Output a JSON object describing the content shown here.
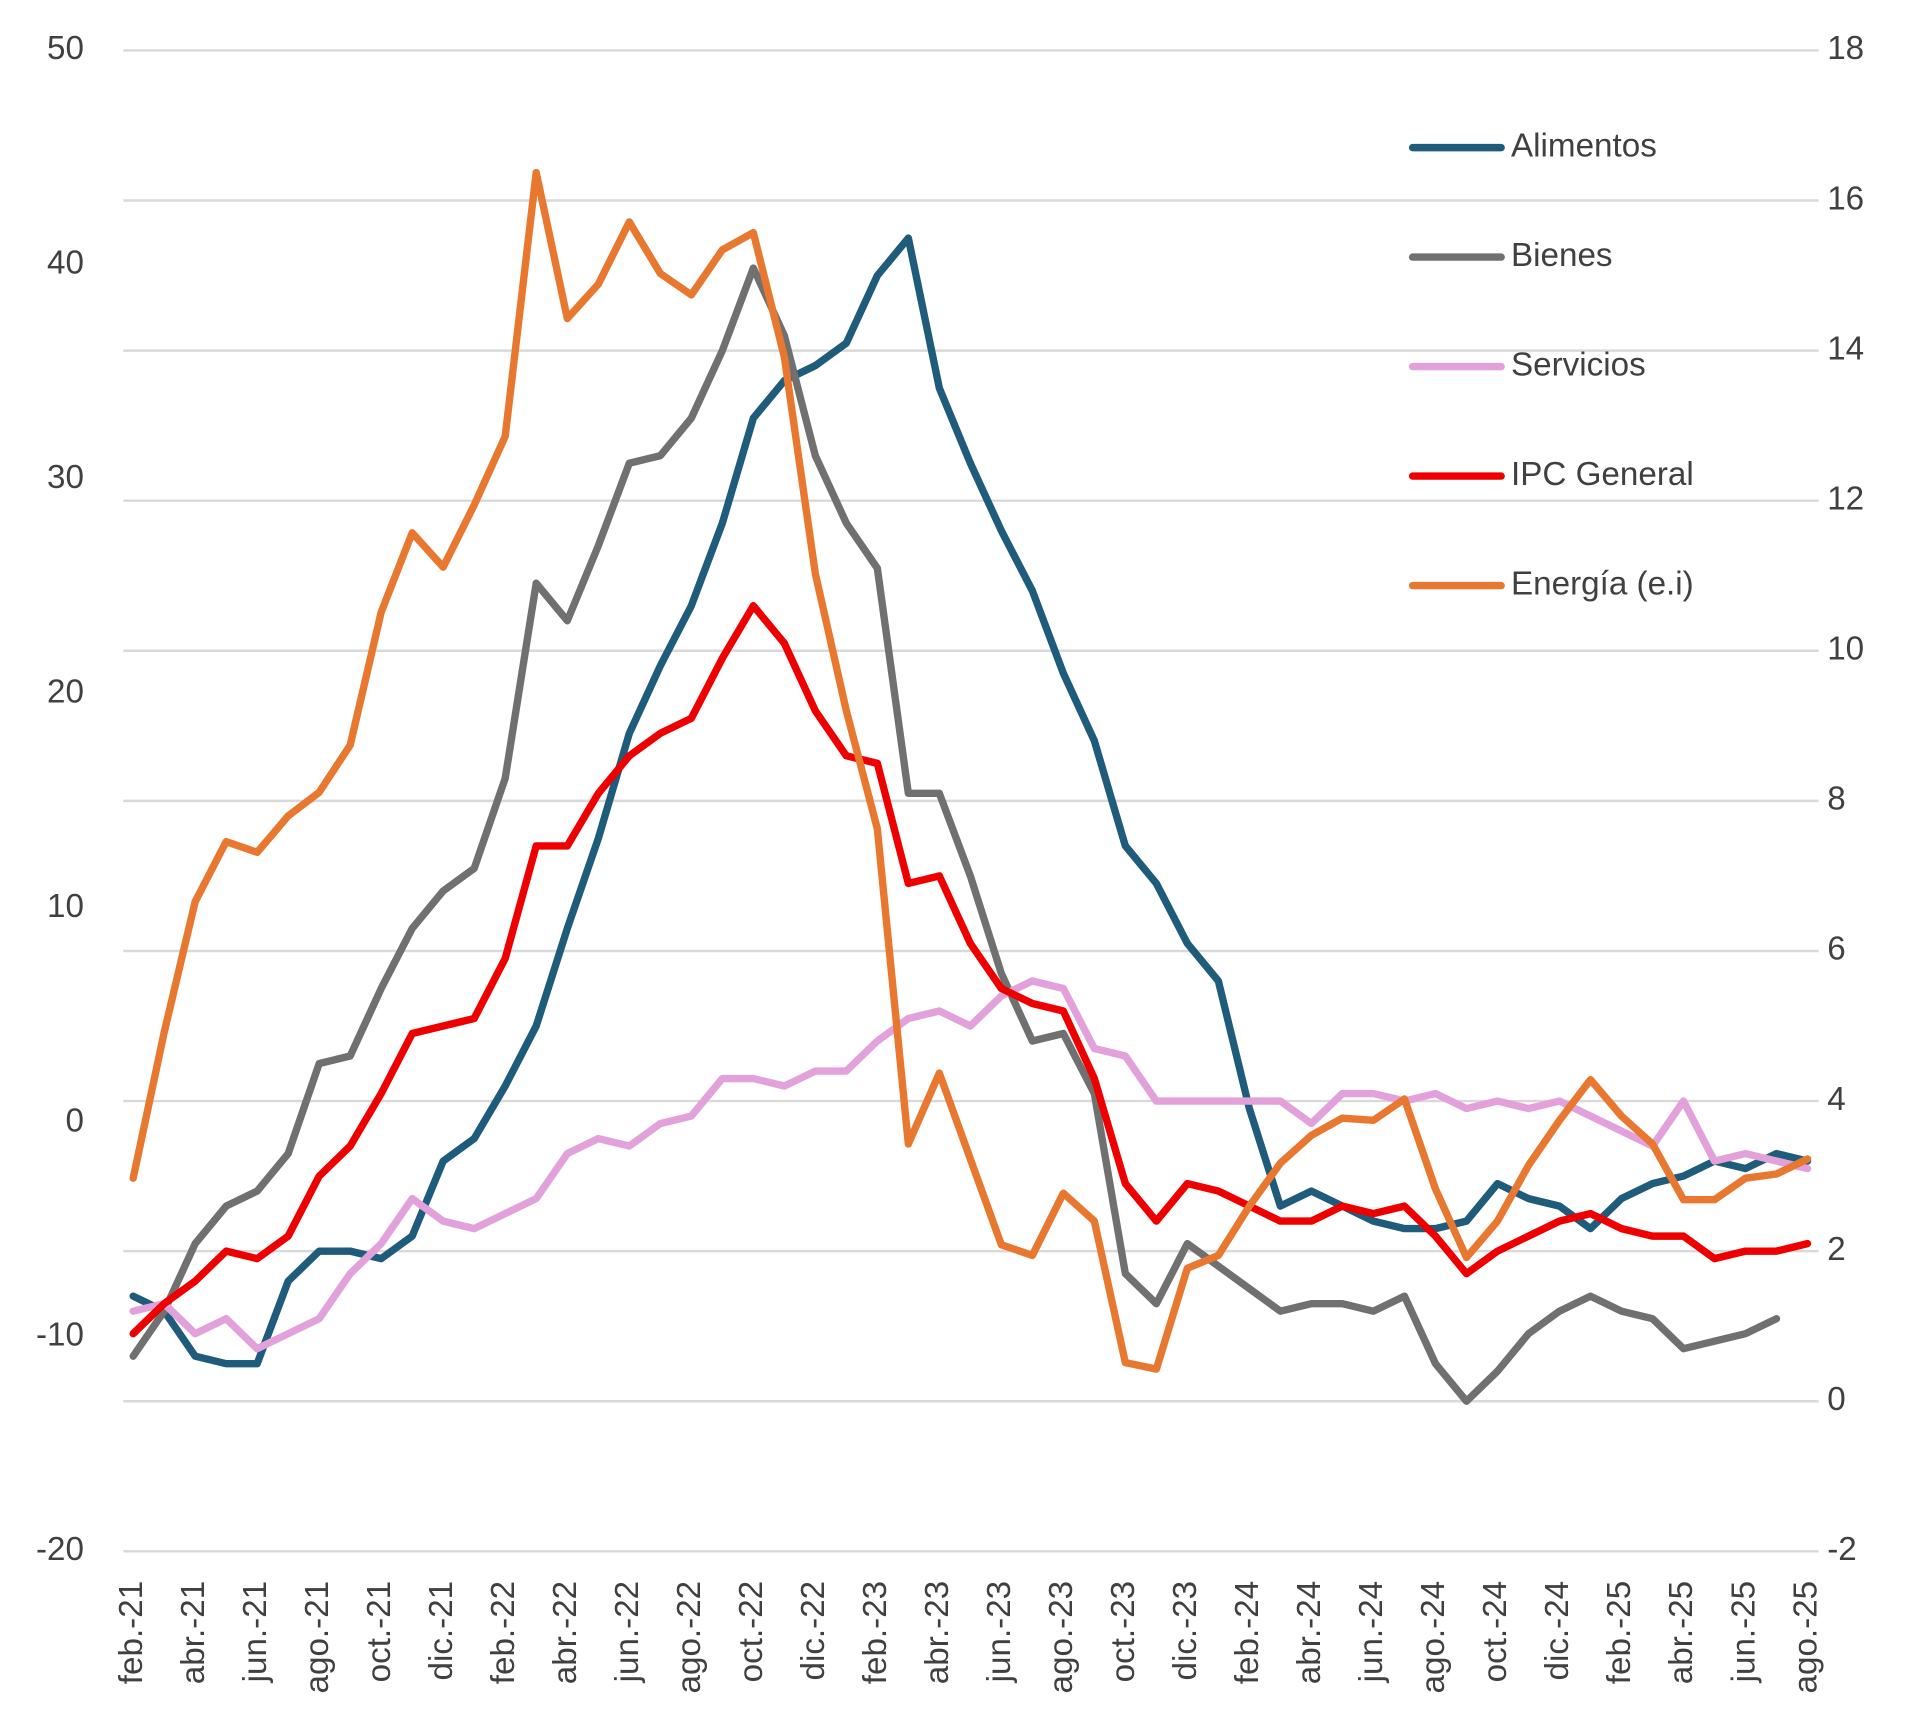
{
  "chart_data": {
    "type": "line",
    "categories": [
      "feb.-21",
      null,
      "abr.-21",
      null,
      "jun.-21",
      null,
      "ago.-21",
      null,
      "oct.-21",
      null,
      "dic.-21",
      null,
      "feb.-22",
      null,
      "abr.-22",
      null,
      "jun.-22",
      null,
      "ago.-22",
      null,
      "oct.-22",
      null,
      "dic.-22",
      null,
      "feb.-23",
      null,
      "abr.-23",
      null,
      "jun.-23",
      null,
      "ago.-23",
      null,
      "oct.-23",
      null,
      "dic.-23",
      null,
      "feb.-24",
      null,
      "abr.-24",
      null,
      "jun.-24",
      null,
      "ago.-24",
      null,
      "oct.-24",
      null,
      "dic.-24",
      null,
      "feb.-25",
      null,
      "abr.-25",
      null,
      "jun.-25",
      null,
      "ago.-25"
    ],
    "series": [
      {
        "name": "Alimentos",
        "color": "#1f5b7a",
        "axis": "y2",
        "values": [
          1.4,
          1.2,
          0.6,
          0.5,
          0.5,
          1.6,
          2.0,
          2.0,
          1.9,
          2.2,
          3.2,
          3.5,
          4.2,
          5.0,
          6.3,
          7.5,
          8.9,
          9.8,
          10.6,
          11.7,
          13.1,
          13.6,
          13.8,
          14.1,
          15.0,
          15.5,
          13.5,
          12.5,
          11.6,
          10.8,
          9.7,
          8.8,
          7.4,
          6.9,
          6.1,
          5.6,
          3.9,
          2.6,
          2.8,
          2.6,
          2.4,
          2.3,
          2.3,
          2.4,
          2.9,
          2.7,
          2.6,
          2.3,
          2.7,
          2.9,
          3.0,
          3.2,
          3.1,
          3.3,
          3.2
        ]
      },
      {
        "name": "Bienes",
        "color": "#707070",
        "axis": "y2",
        "values": [
          0.6,
          1.2,
          2.1,
          2.6,
          2.8,
          3.3,
          4.5,
          4.6,
          5.5,
          6.3,
          6.8,
          7.1,
          8.3,
          10.9,
          10.4,
          11.4,
          12.5,
          12.6,
          13.1,
          14.0,
          15.1,
          14.2,
          12.6,
          11.7,
          11.1,
          8.1,
          8.1,
          7.0,
          5.7,
          4.8,
          4.9,
          4.1,
          1.7,
          1.3,
          2.1,
          1.8,
          1.5,
          1.2,
          1.3,
          1.3,
          1.2,
          1.4,
          0.5,
          0.0,
          0.4,
          0.9,
          1.2,
          1.4,
          1.2,
          1.1,
          0.7,
          0.8,
          0.9,
          1.1,
          null
        ]
      },
      {
        "name": "Servicios",
        "color": "#e3a1dc",
        "axis": "y2",
        "values": [
          1.2,
          1.3,
          0.9,
          1.1,
          0.7,
          0.9,
          1.1,
          1.7,
          2.1,
          2.7,
          2.4,
          2.3,
          2.5,
          2.7,
          3.3,
          3.5,
          3.4,
          3.7,
          3.8,
          4.3,
          4.3,
          4.2,
          4.4,
          4.4,
          4.8,
          5.1,
          5.2,
          5.0,
          5.4,
          5.6,
          5.5,
          4.7,
          4.6,
          4.0,
          4.0,
          4.0,
          4.0,
          4.0,
          3.7,
          4.1,
          4.1,
          4.0,
          4.1,
          3.9,
          4.0,
          3.9,
          4.0,
          3.8,
          3.6,
          3.4,
          4.0,
          3.2,
          3.3,
          3.2,
          3.1
        ]
      },
      {
        "name": "IPC General",
        "color": "#ee0000",
        "axis": "y2",
        "values": [
          0.9,
          1.3,
          1.6,
          2.0,
          1.9,
          2.2,
          3.0,
          3.4,
          4.1,
          4.9,
          5.0,
          5.1,
          5.9,
          7.4,
          7.4,
          8.1,
          8.6,
          8.9,
          9.1,
          9.9,
          10.6,
          10.1,
          9.2,
          8.6,
          8.5,
          6.9,
          7.0,
          6.1,
          5.5,
          5.3,
          5.2,
          4.3,
          2.9,
          2.4,
          2.9,
          2.8,
          2.6,
          2.4,
          2.4,
          2.6,
          2.5,
          2.6,
          2.2,
          1.7,
          2.0,
          2.2,
          2.4,
          2.5,
          2.3,
          2.2,
          2.2,
          1.9,
          2.0,
          2.0,
          2.1
        ]
      },
      {
        "name": "Energía (e.i)",
        "color": "#e8782f",
        "values": [
          -2.6,
          4.2,
          10.3,
          13.1,
          12.6,
          14.3,
          15.4,
          17.6,
          23.8,
          27.5,
          25.9,
          28.8,
          32.0,
          44.3,
          37.5,
          39.1,
          42.0,
          39.6,
          38.6,
          40.7,
          41.5,
          35.7,
          25.6,
          19.2,
          13.7,
          -1.0,
          2.3,
          -1.7,
          -5.7,
          -6.2,
          -3.3,
          -4.6,
          -11.2,
          -11.5,
          -6.8,
          -6.2,
          -3.9,
          -1.9,
          -0.6,
          0.2,
          0.1,
          1.1,
          -3.1,
          -6.3,
          -4.6,
          -2.0,
          0.1,
          2.0,
          0.3,
          -1.0,
          -3.6,
          -3.6,
          -2.6,
          -2.4,
          -1.7
        ]
      }
    ],
    "ylim": [
      -20,
      50
    ],
    "yticks": [
      -20,
      -10,
      0,
      10,
      20,
      30,
      40,
      50
    ],
    "y2lim": [
      -2,
      18
    ],
    "y2ticks": [
      -2,
      0,
      2,
      4,
      6,
      8,
      10,
      12,
      14,
      16,
      18
    ],
    "grid": "y2",
    "legend": "top-right"
  }
}
